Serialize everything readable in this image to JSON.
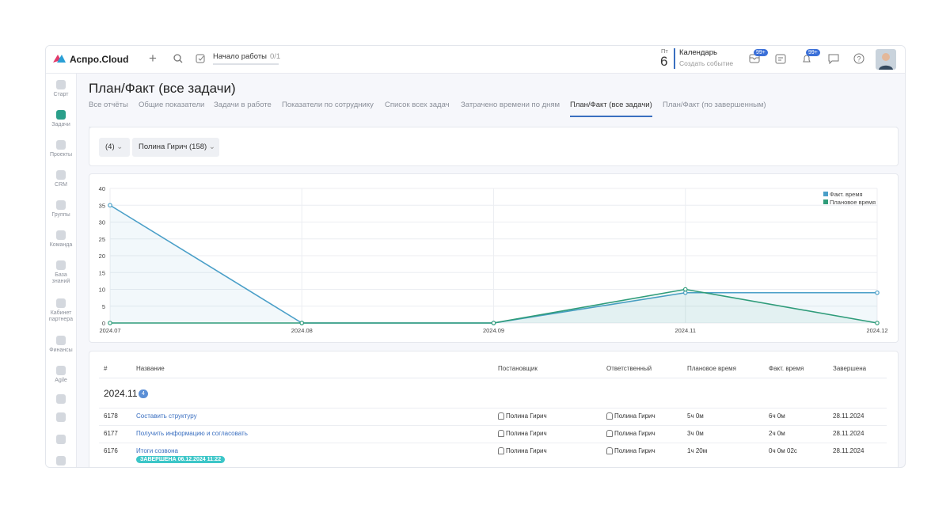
{
  "header": {
    "logo": "Аспро.Cloud",
    "start_work": "Начало работы",
    "start_work_progress": "0/1",
    "day_name": "Пт",
    "day_number": "6",
    "calendar_title": "Календарь",
    "calendar_action": "Создать событие",
    "mail_badge": "99+",
    "bell_badge": "99+"
  },
  "sidebar": [
    "Старт",
    "Задачи",
    "Проекты",
    "CRM",
    "Группы",
    "Команда",
    "База знаний",
    "Кабинет партнера",
    "Финансы",
    "Agile"
  ],
  "page": {
    "title": "План/Факт (все задачи)",
    "tabs": [
      "Все отчёты",
      "Общие показатели",
      "Задачи в работе",
      "Показатели по сотруднику",
      "Список всех задач",
      "Затрачено времени по дням",
      "План/Факт (все задачи)",
      "План/Факт (по завершенным)"
    ]
  },
  "filters": [
    "(4)",
    "Полина Гирич (158)"
  ],
  "chart_data": {
    "type": "line",
    "categories": [
      "2024.07",
      "2024.08",
      "2024.09",
      "2024.11",
      "2024.12"
    ],
    "series": [
      {
        "name": "Факт. время",
        "color": "#4a9fc8",
        "values": [
          35,
          0,
          0,
          9,
          9
        ]
      },
      {
        "name": "Плановое время",
        "color": "#2f9c7a",
        "values": [
          0,
          0,
          0,
          10,
          0
        ]
      }
    ],
    "ylim": [
      0,
      40
    ],
    "yticks": [
      0,
      5,
      10,
      15,
      20,
      25,
      30,
      35,
      40
    ],
    "grid": true,
    "legend": "top-right"
  },
  "table": {
    "columns": [
      "#",
      "Название",
      "Постановщик",
      "Ответственный",
      "Плановое время",
      "Факт. время",
      "Завершена"
    ],
    "group": {
      "label": "2024.11",
      "count": 4
    },
    "rows": [
      [
        "6178",
        "Составить структуру",
        "Полина Гирич",
        "Полина Гирич",
        "5ч 0м",
        "6ч 0м",
        "28.11.2024"
      ],
      [
        "6177",
        "Получить информацию и согласовать",
        "Полина Гирич",
        "Полина Гирич",
        "3ч 0м",
        "2ч 0м",
        "28.11.2024"
      ],
      [
        "6176",
        "Итоги созвона",
        "Полина Гирич",
        "Полина Гирич",
        "1ч 20м",
        "0ч 0м 02с",
        "28.11.2024"
      ]
    ],
    "row_badge": "ЗАВЕРШЕНА 06.12.2024 11:22"
  }
}
